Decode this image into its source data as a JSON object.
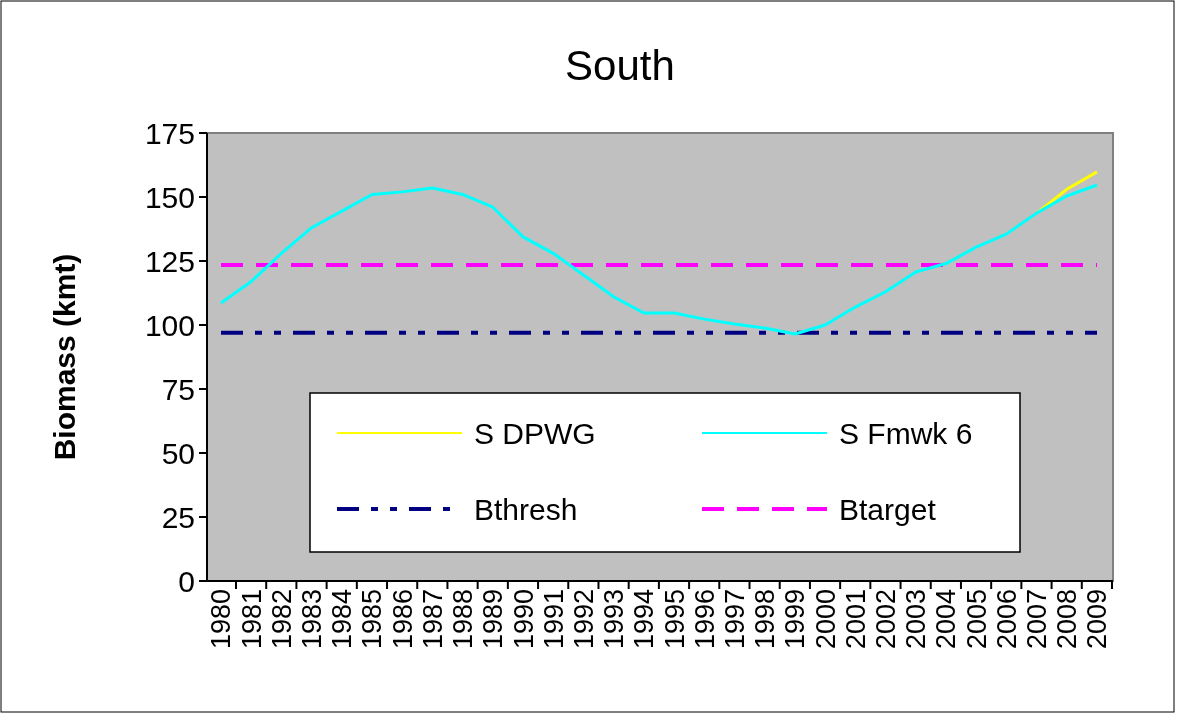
{
  "chart_data": {
    "type": "line",
    "title": "South",
    "ylabel": "Biomass (kmt)",
    "categories": [
      "1980",
      "1981",
      "1982",
      "1983",
      "1984",
      "1985",
      "1986",
      "1987",
      "1988",
      "1989",
      "1990",
      "1991",
      "1992",
      "1993",
      "1994",
      "1995",
      "1996",
      "1997",
      "1998",
      "1999",
      "2000",
      "2001",
      "2002",
      "2003",
      "2004",
      "2005",
      "2006",
      "2007",
      "2008",
      "2009"
    ],
    "series": [
      {
        "name": "S DPWG",
        "color": "#ffff00",
        "values": [
          null,
          null,
          null,
          null,
          null,
          null,
          null,
          null,
          null,
          null,
          null,
          null,
          null,
          null,
          null,
          null,
          null,
          null,
          null,
          null,
          null,
          null,
          null,
          null,
          null,
          null,
          null,
          143.7,
          153,
          159.8
        ]
      },
      {
        "name": "S Fmwk 6",
        "color": "#00ffff",
        "values": [
          108.6,
          117,
          128,
          138,
          144.5,
          151,
          152,
          153.5,
          151,
          146,
          134.4,
          128,
          119.5,
          111,
          104.7,
          104.7,
          102.3,
          100.4,
          98.8,
          96.5,
          100,
          107,
          113,
          120.7,
          124,
          130.4,
          135.5,
          143.7,
          150.4,
          154.7
        ]
      }
    ],
    "ref_lines": [
      {
        "axis": "y",
        "value": 97,
        "label": "Bthresh",
        "color": "#000080",
        "line_style": "dotted"
      },
      {
        "axis": "y",
        "value": 123.4,
        "label": "Btarget",
        "color": "#ff00ff",
        "line_style": "dashed"
      }
    ],
    "ylim": [
      0,
      175
    ],
    "yticks": [
      0,
      25,
      50,
      75,
      100,
      125,
      150,
      175
    ],
    "grid": false,
    "legend": "bottom",
    "marker": "none",
    "line_style": "solid"
  }
}
